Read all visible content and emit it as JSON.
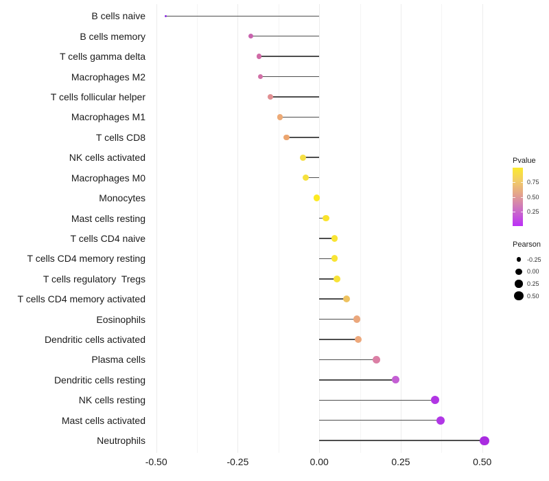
{
  "chart_data": {
    "type": "lollipop",
    "orientation": "horizontal",
    "title": "",
    "xlabel": "",
    "ylabel": "",
    "xlim": [
      -0.55,
      0.57
    ],
    "grid": "vertical major and minor gridlines, light gray, white background",
    "x_ticks": [
      {
        "label": "-0.50",
        "value": -0.5
      },
      {
        "label": "-0.25",
        "value": -0.25
      },
      {
        "label": "0.00",
        "value": 0.0
      },
      {
        "label": "0.25",
        "value": 0.25
      },
      {
        "label": "0.50",
        "value": 0.5
      }
    ],
    "points": [
      {
        "label": "B cells naive",
        "pearson": -0.47,
        "color": "#8b2fe0"
      },
      {
        "label": "B cells memory",
        "pearson": -0.21,
        "color": "#c863ae"
      },
      {
        "label": "T cells gamma delta",
        "pearson": -0.185,
        "color": "#d06ba6"
      },
      {
        "label": "Macrophages M2",
        "pearson": -0.18,
        "color": "#d170a7"
      },
      {
        "label": "T cells follicular helper",
        "pearson": -0.15,
        "color": "#e18f92"
      },
      {
        "label": "Macrophages M1",
        "pearson": -0.12,
        "color": "#edaa76"
      },
      {
        "label": "T cells CD8",
        "pearson": -0.1,
        "color": "#eca56f"
      },
      {
        "label": "NK cells activated",
        "pearson": -0.05,
        "color": "#f6df45"
      },
      {
        "label": "Macrophages M0",
        "pearson": -0.042,
        "color": "#f6e13c"
      },
      {
        "label": "Monocytes",
        "pearson": -0.008,
        "color": "#fdea21"
      },
      {
        "label": "Mast cells resting",
        "pearson": 0.021,
        "color": "#fae32c"
      },
      {
        "label": "T cells CD4 naive",
        "pearson": 0.047,
        "color": "#f8e434"
      },
      {
        "label": "T cells CD4 memory resting",
        "pearson": 0.047,
        "color": "#f8e434"
      },
      {
        "label": "T cells regulatory  Tregs",
        "pearson": 0.054,
        "color": "#f7e237"
      },
      {
        "label": "T cells CD4 memory activated",
        "pearson": 0.084,
        "color": "#eec25f"
      },
      {
        "label": "Eosinophils",
        "pearson": 0.115,
        "color": "#eba77c"
      },
      {
        "label": "Dendritic cells activated",
        "pearson": 0.119,
        "color": "#eda87b"
      },
      {
        "label": "Plasma cells",
        "pearson": 0.175,
        "color": "#db7fa5"
      },
      {
        "label": "Dendritic cells resting",
        "pearson": 0.234,
        "color": "#c45fd4"
      },
      {
        "label": "NK cells resting",
        "pearson": 0.355,
        "color": "#b135e4"
      },
      {
        "label": "Mast cells activated",
        "pearson": 0.372,
        "color": "#b137e6"
      },
      {
        "label": "Neutrophils",
        "pearson": 0.507,
        "color": "#a92ce0"
      }
    ],
    "legends": {
      "pvalue": {
        "title": "Pvalue",
        "scale_range": [
          0,
          1
        ],
        "gradient_top_to_bottom": [
          {
            "color": "#fbea2e",
            "pos": 0
          },
          {
            "color": "#f2cd66",
            "pos": 22
          },
          {
            "color": "#e4a48b",
            "pos": 45
          },
          {
            "color": "#cd74c0",
            "pos": 70
          },
          {
            "color": "#bb2ff7",
            "pos": 100
          }
        ],
        "ticks": [
          {
            "label": "0.75",
            "value": 0.75
          },
          {
            "label": "0.50",
            "value": 0.5
          },
          {
            "label": "0.25",
            "value": 0.25
          }
        ]
      },
      "pearson": {
        "title": "Pearson",
        "dot_color": "#000000",
        "items": [
          {
            "label": "-0.25",
            "value": -0.25
          },
          {
            "label": "0.00",
            "value": 0.0
          },
          {
            "label": "0.25",
            "value": 0.25
          },
          {
            "label": "0.50",
            "value": 0.5
          }
        ]
      }
    }
  }
}
